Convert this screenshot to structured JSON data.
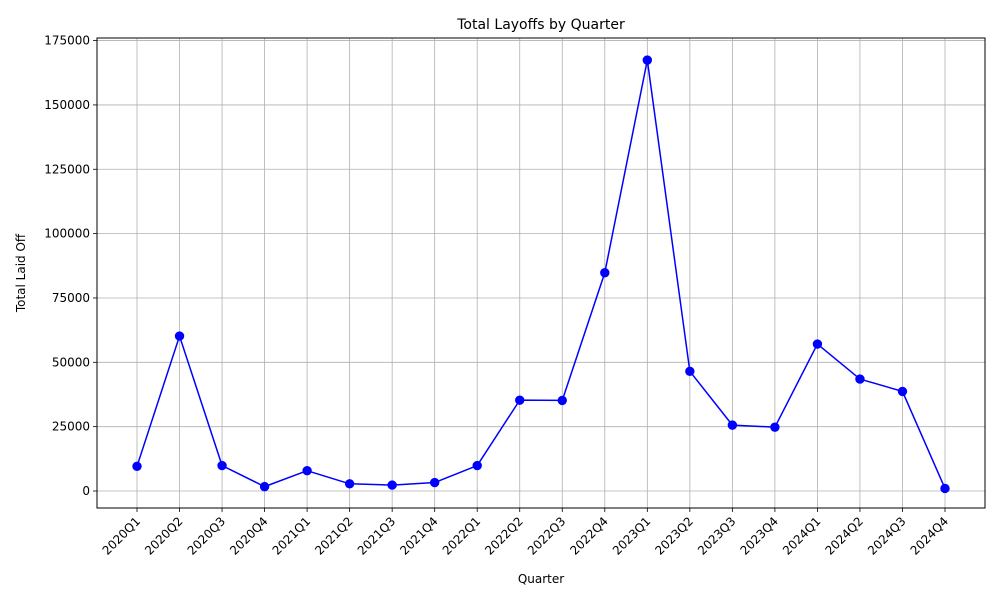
{
  "chart_data": {
    "type": "line",
    "title": "Total Layoffs by Quarter",
    "xlabel": "Quarter",
    "ylabel": "Total Laid Off",
    "categories": [
      "2020Q1",
      "2020Q2",
      "2020Q3",
      "2020Q4",
      "2021Q1",
      "2021Q2",
      "2021Q3",
      "2021Q4",
      "2022Q1",
      "2022Q2",
      "2022Q3",
      "2022Q4",
      "2023Q1",
      "2023Q2",
      "2023Q3",
      "2023Q4",
      "2024Q1",
      "2024Q2",
      "2024Q3",
      "2024Q4"
    ],
    "series": [
      {
        "color": "#0000ff",
        "marker": "circle",
        "values": [
          9600,
          60200,
          9900,
          1700,
          7900,
          2800,
          2300,
          3300,
          9900,
          35300,
          35200,
          84800,
          167400,
          46500,
          25600,
          24800,
          57100,
          43500,
          38700,
          1000
        ]
      }
    ],
    "yticks": [
      0,
      25000,
      50000,
      75000,
      100000,
      125000,
      150000,
      175000
    ],
    "ylim": [
      -6600,
      176000
    ],
    "grid": true,
    "colors": {
      "line": "#0000ff",
      "grid": "#b0b0b0",
      "axis": "#000000"
    }
  }
}
